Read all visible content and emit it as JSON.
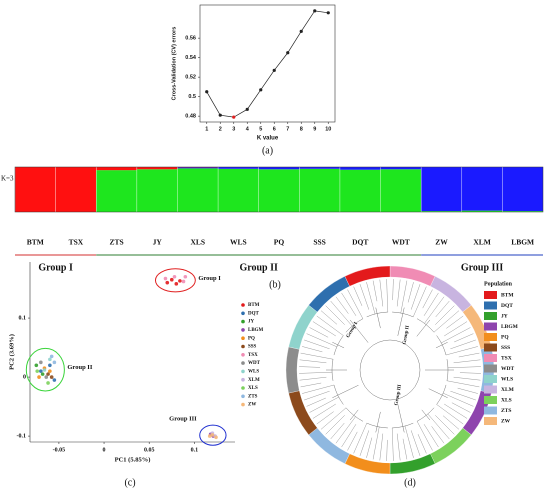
{
  "chart_data": [
    {
      "type": "line",
      "label": "(a)",
      "x_label": "K value",
      "y_label": "Cross-Validation (CV) errors",
      "x": [
        1,
        2,
        3,
        4,
        5,
        6,
        7,
        8,
        9,
        10
      ],
      "values": [
        0.505,
        0.481,
        0.479,
        0.487,
        0.507,
        0.527,
        0.545,
        0.567,
        0.588,
        0.586
      ],
      "color": "#222222",
      "point_colors": [
        "#222222",
        "#222222",
        "#e02020",
        "#222222",
        "#222222",
        "#222222",
        "#222222",
        "#222222",
        "#222222",
        "#222222"
      ],
      "xlim": [
        0.5,
        10.5
      ],
      "xticks": [
        1,
        2,
        3,
        4,
        5,
        6,
        7,
        8,
        9,
        10
      ],
      "ylim": [
        0.474,
        0.594
      ],
      "yticks": [
        0.48,
        0.5,
        0.52,
        0.54,
        0.56
      ]
    },
    {
      "type": "structure",
      "label": "(b)",
      "k_label": "K=3",
      "categories": [
        "BTM",
        "TSX",
        "ZTS",
        "JY",
        "XLS",
        "WLS",
        "PQ",
        "SSS",
        "DQT",
        "WDT",
        "ZW",
        "XLM",
        "LBGM"
      ],
      "series": [
        {
          "color": "#1ee61e",
          "values": [
            0,
            0,
            0.93,
            0.95,
            0.97,
            0.96,
            0.95,
            0.96,
            0.94,
            0.95,
            0.02,
            0.03,
            0.02
          ]
        },
        {
          "color": "#1a1aff",
          "values": [
            0,
            0,
            0,
            0,
            0.02,
            0.04,
            0.05,
            0.04,
            0.06,
            0.05,
            0.98,
            0.97,
            0.98
          ]
        },
        {
          "color": "#ff1010",
          "values": [
            1,
            1,
            0.07,
            0.05,
            0.01,
            0,
            0,
            0,
            0,
            0,
            0,
            0,
            0
          ]
        }
      ],
      "ylim": [
        0,
        1
      ],
      "groups": [
        {
          "name": "Group I",
          "color": "#d32f2f",
          "categories": [
            "BTM",
            "TSX"
          ]
        },
        {
          "name": "Group II",
          "color": "#2e7d32",
          "categories": [
            "ZTS",
            "JY",
            "XLS",
            "WLS",
            "PQ",
            "SSS",
            "DQT",
            "WDT"
          ]
        },
        {
          "name": "Group III",
          "color": "#1f3fbf",
          "categories": [
            "ZW",
            "XLM",
            "LBGM"
          ]
        }
      ]
    },
    {
      "type": "scatter",
      "label": "(c)",
      "x_label": "PC1 (5.85%)",
      "y_label": "PC2 (3.69%)",
      "xlim": [
        -0.082,
        0.145
      ],
      "xticks": [
        -0.05,
        0,
        0.05,
        0.1
      ],
      "ylim": [
        -0.11,
        0.195
      ],
      "yticks": [
        -0.1,
        0,
        0.1
      ],
      "series": [
        {
          "name": "BTM",
          "color": "#e31a1c",
          "x": [
            0.07,
            0.075,
            0.08,
            0.084
          ],
          "y": [
            0.16,
            0.165,
            0.158,
            0.163
          ]
        },
        {
          "name": "DQT",
          "color": "#2e6fae",
          "x": [
            -0.07,
            -0.06,
            -0.055
          ],
          "y": [
            0.01,
            0.02,
            -0.005
          ]
        },
        {
          "name": "JY",
          "color": "#33a02c",
          "x": [
            -0.075,
            -0.068
          ],
          "y": [
            0.02,
            0.005
          ]
        },
        {
          "name": "LBGM",
          "color": "#8e44ad",
          "x": [
            0.118,
            0.121
          ],
          "y": [
            -0.097,
            -0.1
          ]
        },
        {
          "name": "PQ",
          "color": "#f28e1c",
          "x": [
            -0.072,
            -0.066,
            -0.06
          ],
          "y": [
            0,
            0.015,
            0.01
          ]
        },
        {
          "name": "SSS",
          "color": "#8c4a1c",
          "x": [
            -0.062,
            -0.058
          ],
          "y": [
            0.005,
            0
          ]
        },
        {
          "name": "TSX",
          "color": "#f08cb4",
          "x": [
            0.068,
            0.078,
            0.088,
            0.09
          ],
          "y": [
            0.167,
            0.17,
            0.162,
            0.17
          ]
        },
        {
          "name": "WDT",
          "color": "#8c8c8c",
          "x": [
            -0.07,
            -0.064
          ],
          "y": [
            0.025,
            0
          ]
        },
        {
          "name": "WLS",
          "color": "#8fd3cc",
          "x": [
            -0.066,
            -0.06
          ],
          "y": [
            0.012,
            0.03
          ]
        },
        {
          "name": "XLM",
          "color": "#c8b4e0",
          "x": [
            0.12,
            0.123
          ],
          "y": [
            -0.095,
            -0.1
          ]
        },
        {
          "name": "XLS",
          "color": "#7cd15c",
          "x": [
            -0.074,
            -0.062
          ],
          "y": [
            0.01,
            -0.01
          ]
        },
        {
          "name": "ZTS",
          "color": "#8fb8e0",
          "x": [
            -0.058,
            -0.055
          ],
          "y": [
            0.035,
            0.025
          ]
        },
        {
          "name": "ZW",
          "color": "#f5b87a",
          "x": [
            0.117,
            0.12,
            0.124
          ],
          "y": [
            -0.1,
            -0.098,
            -0.102
          ]
        }
      ],
      "annotations": [
        {
          "text": "Group I",
          "color": "#e02020",
          "series": [
            "BTM",
            "TSX"
          ]
        },
        {
          "text": "Group II",
          "color": "#3ad43a",
          "series": [
            "DQT",
            "JY",
            "PQ",
            "SSS",
            "WDT",
            "WLS",
            "XLS",
            "ZTS"
          ]
        },
        {
          "text": "Group III",
          "color": "#2030d0",
          "series": [
            "LBGM",
            "XLM",
            "ZW"
          ]
        }
      ]
    },
    {
      "type": "circular-tree",
      "label": "(d)",
      "legend_title": "Population",
      "legend": [
        {
          "name": "BTM",
          "color": "#e31a1c"
        },
        {
          "name": "DQT",
          "color": "#2e6fae"
        },
        {
          "name": "JY",
          "color": "#33a02c"
        },
        {
          "name": "LBGM",
          "color": "#8e44ad"
        },
        {
          "name": "PQ",
          "color": "#f28e1c"
        },
        {
          "name": "SSS",
          "color": "#8c4a1c"
        },
        {
          "name": "TSX",
          "color": "#f08cb4"
        },
        {
          "name": "WDT",
          "color": "#8c8c8c"
        },
        {
          "name": "WLS",
          "color": "#8fd3cc"
        },
        {
          "name": "XLM",
          "color": "#c8b4e0"
        },
        {
          "name": "XLS",
          "color": "#7cd15c"
        },
        {
          "name": "ZTS",
          "color": "#8fb8e0"
        },
        {
          "name": "ZW",
          "color": "#f5b87a"
        }
      ],
      "ring": [
        "TSX",
        "XLM",
        "ZW",
        "ZTS",
        "LBGM",
        "XLS",
        "JY",
        "PQ",
        "ZTS",
        "SSS",
        "WDT",
        "WLS",
        "DQT",
        "BTM"
      ],
      "groups": [
        "Group I",
        "Group II",
        "Group III"
      ]
    }
  ]
}
